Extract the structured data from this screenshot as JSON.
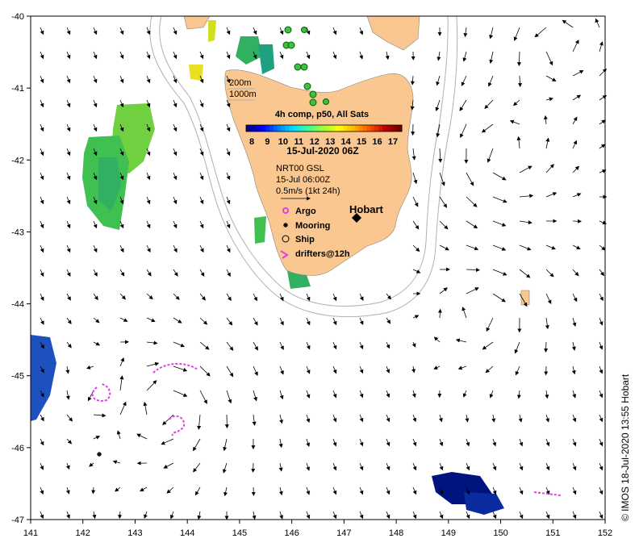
{
  "map": {
    "lon_ticks": [
      "141",
      "142",
      "143",
      "144",
      "145",
      "146",
      "147",
      "148",
      "149",
      "150",
      "151",
      "152"
    ],
    "lat_ticks": [
      "-40",
      "-41",
      "-42",
      "-43",
      "-44",
      "-45",
      "-46",
      "-47"
    ],
    "isobaths": [
      "200m",
      "1000m"
    ],
    "land_color": "#f9c78f",
    "ocean_color": "#ffffff"
  },
  "colorbar": {
    "title": "4h comp, p50, All Sats",
    "ticks": [
      "8",
      "9",
      "10",
      "11",
      "12",
      "13",
      "14",
      "15",
      "16",
      "17"
    ],
    "date": "15-Jul-2020 06Z",
    "colors": [
      "#00008c",
      "#0000ff",
      "#0080ff",
      "#00e0ff",
      "#40ff90",
      "#a0ff30",
      "#ffff00",
      "#ffb000",
      "#ff5000",
      "#c00000",
      "#700000"
    ]
  },
  "currents": {
    "source": "NRT00 GSL",
    "time": "15-Jul 06:00Z",
    "scale": "0.5m/s (1kt 24h)"
  },
  "legend": {
    "argo": "Argo",
    "mooring": "Mooring",
    "ship": "Ship",
    "drifters": "drifters@12h",
    "argo_color": "#e040e0"
  },
  "places": {
    "hobart": "Hobart"
  },
  "credit": "© IMOS 18-Jul-2020 13:55 Hobart"
}
